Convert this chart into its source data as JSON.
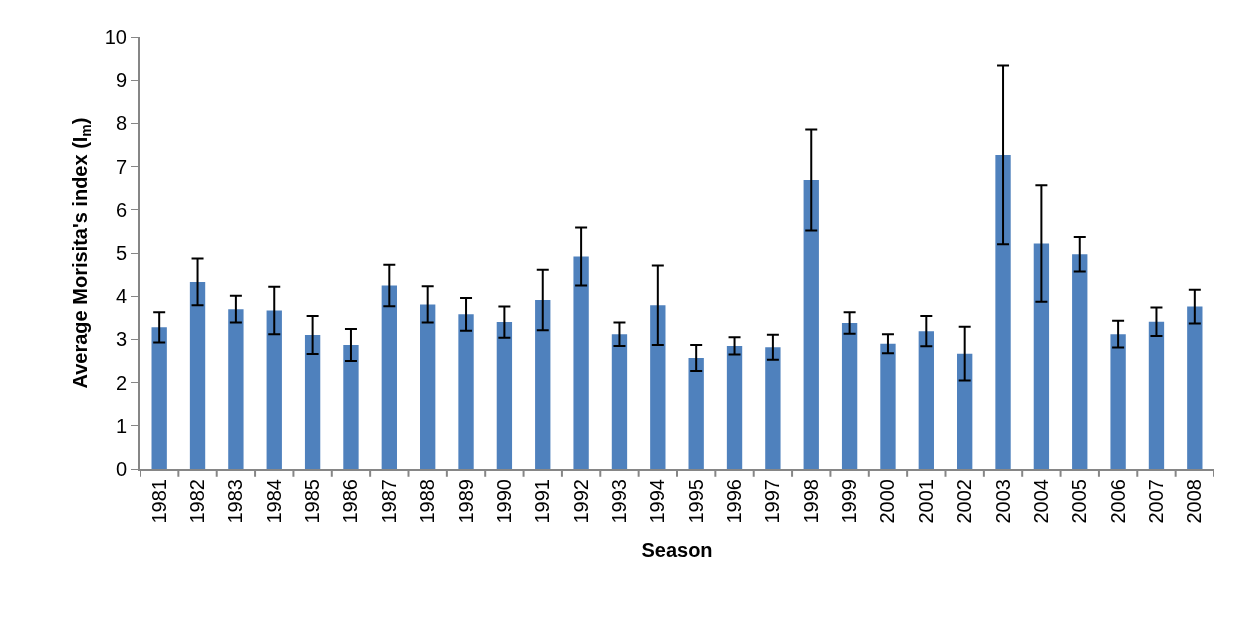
{
  "chart_data": {
    "type": "bar",
    "xlabel": "Season",
    "ylabel": "Average Morisita's index (I$_{m}$)",
    "categories": [
      "1981",
      "1982",
      "1983",
      "1984",
      "1985",
      "1986",
      "1987",
      "1988",
      "1989",
      "1990",
      "1991",
      "1992",
      "1993",
      "1994",
      "1995",
      "1996",
      "1997",
      "1998",
      "1999",
      "2000",
      "2001",
      "2002",
      "2003",
      "2004",
      "2005",
      "2006",
      "2007",
      "2008"
    ],
    "values": [
      3.28,
      4.33,
      3.7,
      3.67,
      3.1,
      2.87,
      4.25,
      3.81,
      3.58,
      3.4,
      3.91,
      4.92,
      3.12,
      3.79,
      2.57,
      2.85,
      2.82,
      6.69,
      3.38,
      2.9,
      3.19,
      2.67,
      7.27,
      5.22,
      4.97,
      3.12,
      3.41,
      3.76
    ],
    "errors": [
      0.35,
      0.54,
      0.31,
      0.55,
      0.44,
      0.37,
      0.48,
      0.42,
      0.38,
      0.36,
      0.7,
      0.67,
      0.27,
      0.92,
      0.3,
      0.2,
      0.29,
      1.17,
      0.25,
      0.22,
      0.35,
      0.62,
      2.07,
      1.35,
      0.4,
      0.31,
      0.33,
      0.39
    ],
    "color": "#4f81bd",
    "ylim": [
      0,
      10
    ],
    "yticks": [
      0,
      1,
      2,
      3,
      4,
      5,
      6,
      7,
      8,
      9,
      10
    ]
  }
}
